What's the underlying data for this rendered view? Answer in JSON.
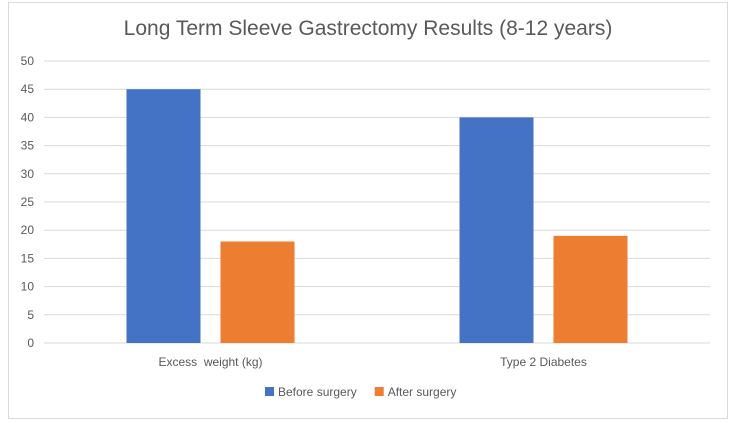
{
  "chart_data": {
    "type": "bar",
    "title": "Long Term Sleeve Gastrectomy Results (8-12 years)",
    "xlabel": "",
    "ylabel": "",
    "categories": [
      "Excess  weight (kg)",
      "Type 2 Diabetes"
    ],
    "series": [
      {
        "name": "Before surgery",
        "values": [
          45,
          40
        ],
        "color": "#4472C4"
      },
      {
        "name": "After surgery",
        "values": [
          18,
          19
        ],
        "color": "#ED7D31"
      }
    ],
    "ylim": [
      0,
      50
    ],
    "yticks": [
      0,
      5,
      10,
      15,
      20,
      25,
      30,
      35,
      40,
      45,
      50
    ],
    "grid": true,
    "legend_position": "bottom"
  }
}
